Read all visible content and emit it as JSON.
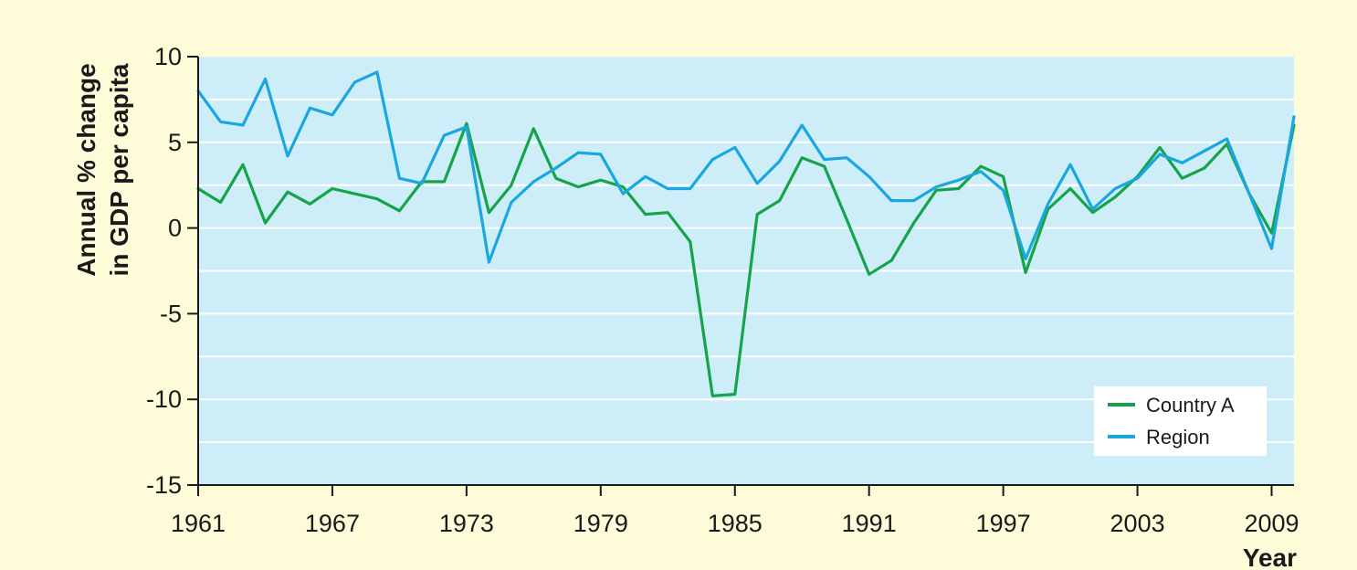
{
  "chart_data": {
    "type": "line",
    "title": "",
    "xlabel": "Year",
    "ylabel_lines": [
      "Annual % change",
      "in GDP per capita"
    ],
    "xlim": [
      1961,
      2010
    ],
    "ylim": [
      -15,
      10
    ],
    "x_ticks": [
      1961,
      1967,
      1973,
      1979,
      1985,
      1991,
      1997,
      2003,
      2009
    ],
    "y_ticks": [
      10,
      5,
      0,
      -5,
      -10,
      -15
    ],
    "grid": true,
    "legend_position": "bottom-right",
    "background_color": "#cdeef8",
    "x": [
      1961,
      1962,
      1963,
      1964,
      1965,
      1966,
      1967,
      1968,
      1969,
      1970,
      1971,
      1972,
      1973,
      1974,
      1975,
      1976,
      1977,
      1978,
      1979,
      1980,
      1981,
      1982,
      1983,
      1984,
      1985,
      1986,
      1987,
      1988,
      1989,
      1990,
      1991,
      1992,
      1993,
      1994,
      1995,
      1996,
      1997,
      1998,
      1999,
      2000,
      2001,
      2002,
      2003,
      2004,
      2005,
      2006,
      2007,
      2008,
      2009,
      2010
    ],
    "series": [
      {
        "name": "Country A",
        "color": "#16a34a",
        "values": [
          2.3,
          1.5,
          3.7,
          0.3,
          2.1,
          1.4,
          2.3,
          2.0,
          1.7,
          1.0,
          2.7,
          2.7,
          6.1,
          0.9,
          2.5,
          5.8,
          2.9,
          2.4,
          2.8,
          2.4,
          0.8,
          0.9,
          -0.8,
          -9.8,
          -9.7,
          0.8,
          1.6,
          4.1,
          3.6,
          0.5,
          -2.7,
          -1.9,
          0.3,
          2.2,
          2.3,
          3.6,
          3.0,
          -2.6,
          1.1,
          2.3,
          0.9,
          1.8,
          3.0,
          4.7,
          2.9,
          3.5,
          4.9,
          2.0,
          -0.3,
          6.0
        ]
      },
      {
        "name": "Region",
        "color": "#1aa7e0",
        "values": [
          8.0,
          6.2,
          6.0,
          8.7,
          4.2,
          7.0,
          6.6,
          8.5,
          9.1,
          2.9,
          2.6,
          5.4,
          5.9,
          -2.0,
          1.5,
          2.7,
          3.5,
          4.4,
          4.3,
          2.0,
          3.0,
          2.3,
          2.3,
          4.0,
          4.7,
          2.6,
          3.9,
          6.0,
          4.0,
          4.1,
          3.0,
          1.6,
          1.6,
          2.4,
          2.8,
          3.3,
          2.2,
          -1.8,
          1.4,
          3.7,
          1.1,
          2.3,
          2.9,
          4.3,
          3.8,
          4.5,
          5.2,
          2.0,
          -1.2,
          6.5
        ]
      }
    ]
  }
}
